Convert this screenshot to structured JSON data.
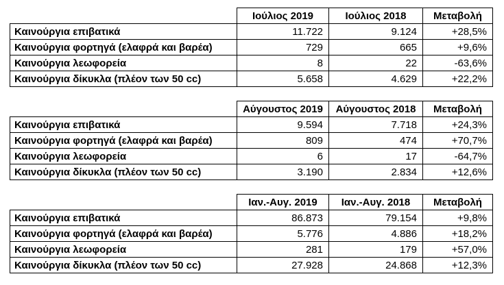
{
  "colors": {
    "background": "#ffffff",
    "text": "#000000",
    "border": "#000000"
  },
  "chart_data": [
    {
      "type": "table",
      "columns": [
        "Ιούλιος 2019",
        "Ιούλιος 2018",
        "Μεταβολή"
      ],
      "rows": [
        {
          "label": "Καινούργια επιβατικά",
          "values": [
            "11.722",
            "9.124",
            "+28,5%"
          ]
        },
        {
          "label": "Καινούργια φορτηγά (ελαφρά και βαρέα)",
          "values": [
            "729",
            "665",
            "+9,6%"
          ]
        },
        {
          "label": "Καινούργια λεωφορεία",
          "values": [
            "8",
            "22",
            "-63,6%"
          ]
        },
        {
          "label": "Καινούργια δίκυκλα (πλέον των 50 cc)",
          "values": [
            "5.658",
            "4.629",
            "+22,2%"
          ]
        }
      ]
    },
    {
      "type": "table",
      "columns": [
        "Αύγουστος 2019",
        "Αύγουστος 2018",
        "Μεταβολή"
      ],
      "rows": [
        {
          "label": "Καινούργια επιβατικά",
          "values": [
            "9.594",
            "7.718",
            "+24,3%"
          ]
        },
        {
          "label": "Καινούργια φορτηγά (ελαφρά και βαρέα)",
          "values": [
            "809",
            "474",
            "+70,7%"
          ]
        },
        {
          "label": "Καινούργια λεωφορεία",
          "values": [
            "6",
            "17",
            "-64,7%"
          ]
        },
        {
          "label": "Καινούργια δίκυκλα (πλέον των 50 cc)",
          "values": [
            "3.190",
            "2.834",
            "+12,6%"
          ]
        }
      ]
    },
    {
      "type": "table",
      "columns": [
        "Ιαν.-Αυγ. 2019",
        "Ιαν.-Αυγ. 2018",
        "Μεταβολή"
      ],
      "rows": [
        {
          "label": "Καινούργια επιβατικά",
          "values": [
            "86.873",
            "79.154",
            "+9,8%"
          ]
        },
        {
          "label": "Καινούργια φορτηγά (ελαφρά και βαρέα)",
          "values": [
            "5.776",
            "4.886",
            "+18,2%"
          ]
        },
        {
          "label": "Καινούργια λεωφορεία",
          "values": [
            "281",
            "179",
            "+57,0%"
          ]
        },
        {
          "label": "Καινούργια δίκυκλα (πλέον των 50 cc)",
          "values": [
            "27.928",
            "24.868",
            "+12,3%"
          ]
        }
      ]
    }
  ]
}
